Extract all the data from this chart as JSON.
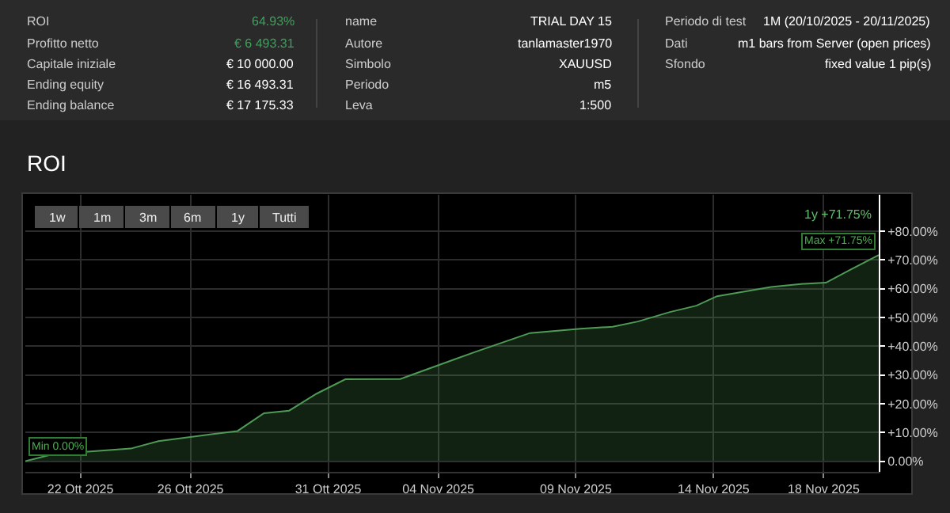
{
  "chart_data": {
    "type": "area",
    "title": "ROI",
    "x": [
      "2025-10-20T00:00",
      "2025-10-21T00:00",
      "2025-10-23T20:00",
      "2025-10-24T20:00",
      "2025-10-26T17:00",
      "2025-10-27T17:00",
      "2025-10-28T16:00",
      "2025-10-29T14:00",
      "2025-10-30T14:00",
      "2025-10-31T15:00",
      "2025-11-02T15:00",
      "2025-11-04T14:00",
      "2025-11-05T08:00",
      "2025-11-07T08:00",
      "2025-11-09T04:00",
      "2025-11-10T08:00",
      "2025-11-11T06:00",
      "2025-11-12T10:00",
      "2025-11-13T09:00",
      "2025-11-14T03:00",
      "2025-11-16T02:00",
      "2025-11-17T06:00",
      "2025-11-18T02:00",
      "2025-11-18T23:00",
      "2025-11-20T00:00"
    ],
    "values": [
      0,
      2.4,
      4.4,
      7.0,
      9.3,
      10.5,
      16.7,
      17.6,
      23.5,
      28.5,
      28.6,
      35.4,
      38.0,
      44.6,
      46.1,
      46.8,
      48.6,
      51.9,
      54.1,
      57.4,
      60.6,
      61.7,
      62.1,
      66.6,
      71.75
    ],
    "color": "#4e9a56",
    "xlim": [
      "2025-10-20",
      "2025-11-20"
    ],
    "xticks": [
      {
        "value": "2025-10-22",
        "label": "22 Ott 2025"
      },
      {
        "value": "2025-10-26",
        "label": "26 Ott 2025"
      },
      {
        "value": "2025-10-31",
        "label": "31 Ott 2025"
      },
      {
        "value": "2025-11-04",
        "label": "04 Nov 2025"
      },
      {
        "value": "2025-11-09",
        "label": "09 Nov 2025"
      },
      {
        "value": "2025-11-14",
        "label": "14 Nov 2025"
      },
      {
        "value": "2025-11-18",
        "label": "18 Nov 2025"
      }
    ],
    "ylim": [
      -3.7,
      92.7
    ],
    "yticks": [
      {
        "value": 0,
        "label": "0.00%"
      },
      {
        "value": 10,
        "label": "+10.00%"
      },
      {
        "value": 20,
        "label": "+20.00%"
      },
      {
        "value": 30,
        "label": "+30.00%"
      },
      {
        "value": 40,
        "label": "+40.00%"
      },
      {
        "value": 50,
        "label": "+50.00%"
      },
      {
        "value": 60,
        "label": "+60.00%"
      },
      {
        "value": 70,
        "label": "+70.00%"
      },
      {
        "value": 80,
        "label": "+80.00%"
      }
    ],
    "grid": true,
    "legend": false,
    "annotations": [
      "ROI",
      "64.93%",
      "Profitto netto",
      "€ 6 493.31",
      "Capitale iniziale",
      "€ 10 000.00",
      "Ending equity",
      "€ 16 493.31",
      "Ending balance",
      "€ 17 175.33",
      "name",
      "TRIAL DAY 15",
      "Autore",
      "tanlamaster1970",
      "Simbolo",
      "XAUUSD",
      "Periodo",
      "m5",
      "Leva",
      "1:500",
      "Periodo di test",
      "1M (20/10/2025 - 20/11/2025)",
      "Dati",
      "m1 bars from Server (open prices)",
      "Sfondo",
      "fixed value 1 pip(s)",
      "1w",
      "1m",
      "3m",
      "6m",
      "1y",
      "Tutti",
      "1y +71.75%",
      {
        "text": "Min 0.00%",
        "x": "2025-10-20T00:00",
        "y": 0
      },
      {
        "text": "Max +71.75%",
        "x": "2025-11-20T00:00",
        "y": 71.75
      }
    ]
  }
}
